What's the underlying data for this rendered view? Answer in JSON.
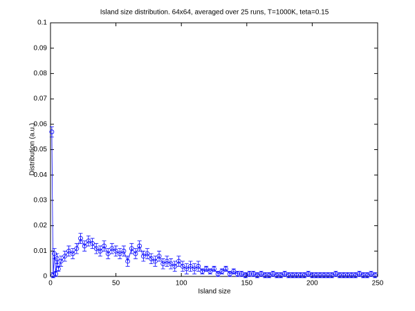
{
  "chart_data": {
    "type": "errorbar",
    "title": "Island size distribution. 64x64, averaged over 25 runs, T=1000K, teta=0.15",
    "xlabel": "Island size",
    "ylabel": "Distribution (a.u.)",
    "xlim": [
      0,
      250
    ],
    "ylim": [
      0,
      0.1
    ],
    "xticks": [
      0,
      50,
      100,
      150,
      200,
      250
    ],
    "yticks": [
      0,
      0.01,
      0.02,
      0.03,
      0.04,
      0.05,
      0.06,
      0.07,
      0.08,
      0.09,
      0.1
    ],
    "series": [
      {
        "color": "#0000ff",
        "x": [
          1,
          2,
          3,
          4,
          5,
          6,
          8,
          11,
          14,
          17,
          20,
          23,
          26,
          29,
          32,
          35,
          38,
          41,
          44,
          47,
          50,
          53,
          56,
          59,
          62,
          65,
          68,
          71,
          74,
          77,
          80,
          83,
          86,
          89,
          92,
          95,
          98,
          101,
          104,
          107,
          110,
          113,
          116,
          119,
          122,
          125,
          128,
          131,
          134,
          137,
          140,
          143,
          146,
          149,
          152,
          155,
          158,
          161,
          164,
          167,
          170,
          173,
          176,
          179,
          182,
          185,
          188,
          191,
          194,
          197,
          200,
          203,
          206,
          209,
          212,
          215,
          218,
          221,
          224,
          227,
          230,
          233,
          236,
          239,
          242,
          245,
          248
        ],
        "values": [
          0.057,
          0.0005,
          0.009,
          0.001,
          0.007,
          0.003,
          0.006,
          0.008,
          0.01,
          0.009,
          0.011,
          0.015,
          0.012,
          0.014,
          0.013,
          0.011,
          0.01,
          0.012,
          0.009,
          0.011,
          0.01,
          0.009,
          0.01,
          0.006,
          0.011,
          0.009,
          0.012,
          0.008,
          0.009,
          0.007,
          0.006,
          0.008,
          0.005,
          0.006,
          0.005,
          0.004,
          0.006,
          0.004,
          0.003,
          0.004,
          0.003,
          0.004,
          0.002,
          0.003,
          0.002,
          0.003,
          0.001,
          0.002,
          0.003,
          0.001,
          0.002,
          0.001,
          0.001,
          0.0005,
          0.001,
          0.001,
          0.0005,
          0.001,
          0.0005,
          0.0005,
          0.001,
          0.0005,
          0.0005,
          0.001,
          0.0005,
          0.0005,
          0.0005,
          0.0005,
          0.0005,
          0.001,
          0.0005,
          0.0005,
          0.0005,
          0.0005,
          0.0005,
          0.0005,
          0.001,
          0.0005,
          0.0005,
          0.0005,
          0.0005,
          0.0005,
          0.001,
          0.0005,
          0.0005,
          0.001,
          0.0005
        ],
        "errors": [
          0.002,
          0.001,
          0.002,
          0.001,
          0.002,
          0.001,
          0.002,
          0.002,
          0.002,
          0.002,
          0.002,
          0.002,
          0.002,
          0.002,
          0.002,
          0.002,
          0.002,
          0.002,
          0.002,
          0.002,
          0.002,
          0.002,
          0.002,
          0.002,
          0.002,
          0.002,
          0.002,
          0.002,
          0.002,
          0.002,
          0.002,
          0.002,
          0.002,
          0.002,
          0.002,
          0.002,
          0.002,
          0.002,
          0.002,
          0.002,
          0.002,
          0.002,
          0.001,
          0.001,
          0.001,
          0.001,
          0.001,
          0.001,
          0.001,
          0.001,
          0.001,
          0.001,
          0.001,
          0.001,
          0.001,
          0.001,
          0.001,
          0.001,
          0.001,
          0.001,
          0.001,
          0.001,
          0.001,
          0.001,
          0.001,
          0.001,
          0.001,
          0.001,
          0.001,
          0.001,
          0.001,
          0.001,
          0.001,
          0.001,
          0.001,
          0.001,
          0.001,
          0.001,
          0.001,
          0.001,
          0.001,
          0.001,
          0.001,
          0.001,
          0.001,
          0.001,
          0.001
        ]
      }
    ]
  }
}
